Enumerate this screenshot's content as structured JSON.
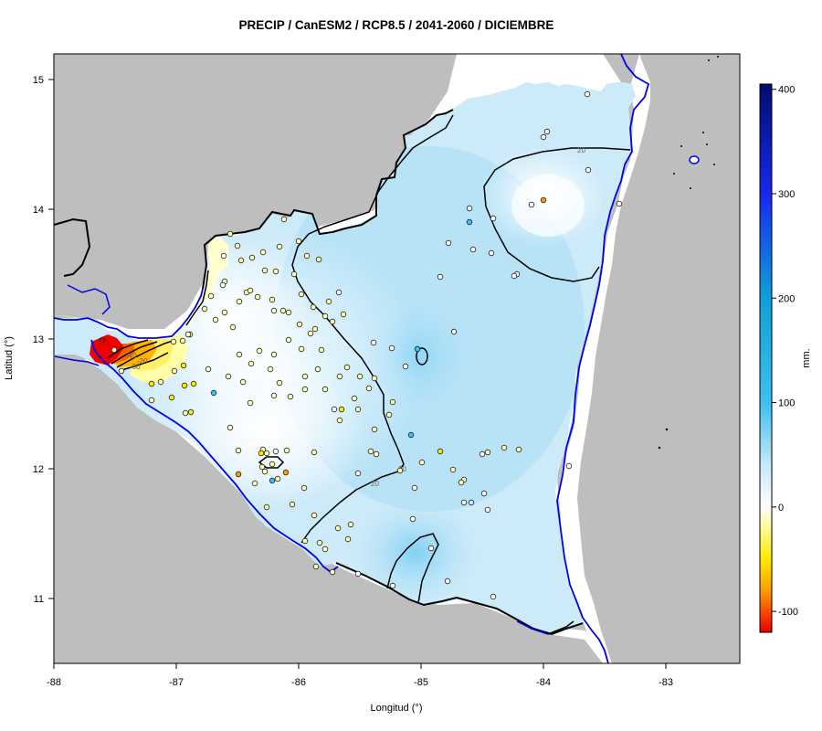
{
  "map": {
    "title": "PRECIP / CanESM2 / RCP8.5 / 2041-2060 / DICIEMBRE",
    "xlabel": "Longitud (°)",
    "ylabel": "Latitud (°)",
    "x_ticks": [
      "-88",
      "-87",
      "-86",
      "-85",
      "-84",
      "-83"
    ],
    "y_ticks": [
      "11",
      "12",
      "13",
      "14",
      "15"
    ],
    "colorbar": {
      "label": "mm.",
      "ticks": [
        "400",
        "300",
        "200",
        "100",
        "0",
        "-100"
      ],
      "range": [
        -120,
        405
      ],
      "stops": [
        {
          "value": -120,
          "color": "#e00000"
        },
        {
          "value": -100,
          "color": "#ff4a00"
        },
        {
          "value": -80,
          "color": "#ff9d00"
        },
        {
          "value": -50,
          "color": "#ffe800"
        },
        {
          "value": -15,
          "color": "#ffffb0"
        },
        {
          "value": 0,
          "color": "#ffffff"
        },
        {
          "value": 40,
          "color": "#c8e8f8"
        },
        {
          "value": 100,
          "color": "#3cc0f0"
        },
        {
          "value": 200,
          "color": "#0ea0d8"
        },
        {
          "value": 300,
          "color": "#1828f0"
        },
        {
          "value": 405,
          "color": "#000c70"
        }
      ]
    },
    "contour_labels": [
      "20",
      "20",
      "20",
      "-20",
      "-40",
      "-60"
    ],
    "colors": {
      "land_outside": "#bebebe",
      "coast_line": "#0000ee",
      "border_line": "#000000",
      "contour_line": "#000000"
    }
  }
}
